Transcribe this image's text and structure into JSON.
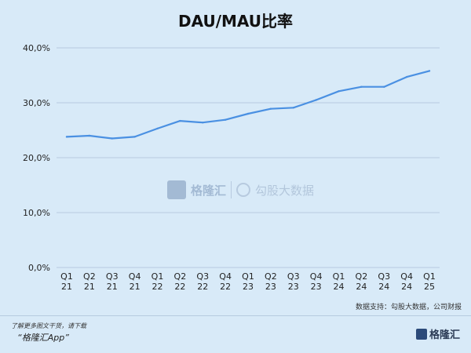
{
  "chart_data": {
    "type": "line",
    "title": "DAU/MAU比率",
    "categories": [
      [
        "Q1",
        "21"
      ],
      [
        "Q2",
        "21"
      ],
      [
        "Q3",
        "21"
      ],
      [
        "Q4",
        "21"
      ],
      [
        "Q1",
        "22"
      ],
      [
        "Q2",
        "22"
      ],
      [
        "Q3",
        "22"
      ],
      [
        "Q4",
        "22"
      ],
      [
        "Q1",
        "23"
      ],
      [
        "Q2",
        "23"
      ],
      [
        "Q3",
        "23"
      ],
      [
        "Q4",
        "23"
      ],
      [
        "Q1",
        "24"
      ],
      [
        "Q2",
        "24"
      ],
      [
        "Q3",
        "24"
      ],
      [
        "Q4",
        "24"
      ],
      [
        "Q1",
        "25"
      ]
    ],
    "series": [
      {
        "values": [
          23.8,
          24.0,
          23.5,
          23.8,
          25.3,
          26.7,
          26.4,
          26.9,
          28.0,
          28.9,
          29.1,
          30.5,
          32.1,
          32.9,
          32.9,
          34.7,
          35.8
        ]
      }
    ],
    "ylim": [
      0,
      40
    ],
    "yticks": [
      0,
      10,
      20,
      30,
      40
    ],
    "ytick_labels": [
      "0,0%",
      "10,0%",
      "20,0%",
      "30,0%",
      "40,0%"
    ],
    "grid": "horizontal",
    "line_color": "#4a90e2",
    "grid_color": "#b7cbe0"
  },
  "source_note": "数据支持：勾股大数据，公司财报",
  "footer": {
    "line1": "了解更多图文干货，请下载",
    "line2": "“格隆汇App”",
    "logo_text": "格隆汇"
  },
  "watermark": {
    "brand1": "格隆汇",
    "brand2": "勾股大数据"
  }
}
